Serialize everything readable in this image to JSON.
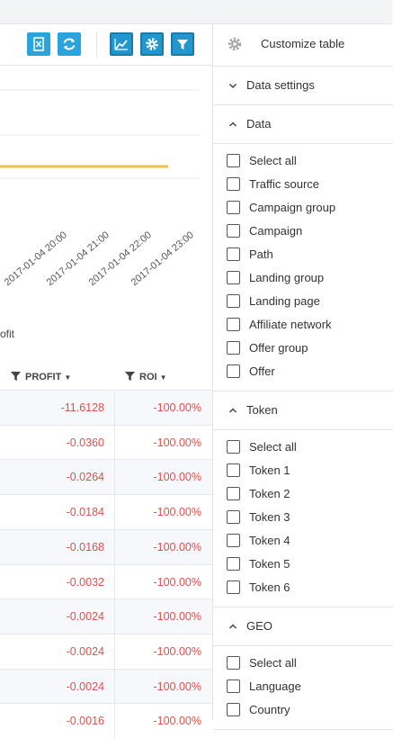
{
  "toolbar": {
    "customize_label": "Customize table"
  },
  "chart": {
    "x_labels": [
      "2017-01-04 20:00",
      "2017-01-04 21:00",
      "2017-01-04 22:00",
      "2017-01-04 23:00"
    ],
    "legend": "ofit"
  },
  "table": {
    "columns": [
      "PROFIT",
      "ROI"
    ],
    "rows": [
      [
        "-11.6128",
        "-100.00%"
      ],
      [
        "-0.0360",
        "-100.00%"
      ],
      [
        "-0.0264",
        "-100.00%"
      ],
      [
        "-0.0184",
        "-100.00%"
      ],
      [
        "-0.0168",
        "-100.00%"
      ],
      [
        "-0.0032",
        "-100.00%"
      ],
      [
        "-0.0024",
        "-100.00%"
      ],
      [
        "-0.0024",
        "-100.00%"
      ],
      [
        "-0.0024",
        "-100.00%"
      ],
      [
        "-0.0016",
        "-100.00%"
      ]
    ]
  },
  "panel": {
    "sections": [
      {
        "title": "Data settings",
        "expanded": false,
        "items": []
      },
      {
        "title": "Data",
        "expanded": true,
        "items": [
          "Select all",
          "Traffic source",
          "Campaign group",
          "Campaign",
          "Path",
          "Landing group",
          "Landing page",
          "Affiliate network",
          "Offer group",
          "Offer"
        ]
      },
      {
        "title": "Token",
        "expanded": true,
        "items": [
          "Select all",
          "Token 1",
          "Token 2",
          "Token 3",
          "Token 4",
          "Token 5",
          "Token 6"
        ]
      },
      {
        "title": "GEO",
        "expanded": true,
        "items": [
          "Select all",
          "Language",
          "Country"
        ]
      }
    ]
  }
}
